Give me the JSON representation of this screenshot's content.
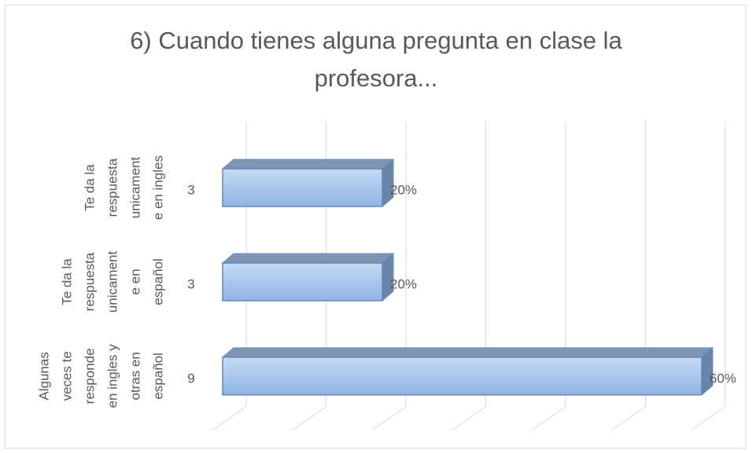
{
  "chart_data": {
    "type": "bar3d_horizontal",
    "title": "6) Cuando tienes alguna pregunta en clase la profesora...",
    "categories": [
      [
        "Te da la",
        "respuesta",
        "unicament",
        "e en ingles"
      ],
      [
        "Te da la",
        "respuesta",
        "unicament",
        "e en",
        "español"
      ],
      [
        "Algunas",
        "veces te",
        "responde",
        "en ingles y",
        "otras en",
        "español"
      ]
    ],
    "counts": [
      3,
      3,
      9
    ],
    "values": [
      20,
      20,
      60
    ],
    "value_labels": [
      "20%",
      "20%",
      "60%"
    ],
    "color": "#9dc3e6",
    "xlim": [
      0,
      60
    ],
    "xticks": [
      0,
      10,
      20,
      30,
      40,
      50,
      60
    ],
    "grid": true
  }
}
